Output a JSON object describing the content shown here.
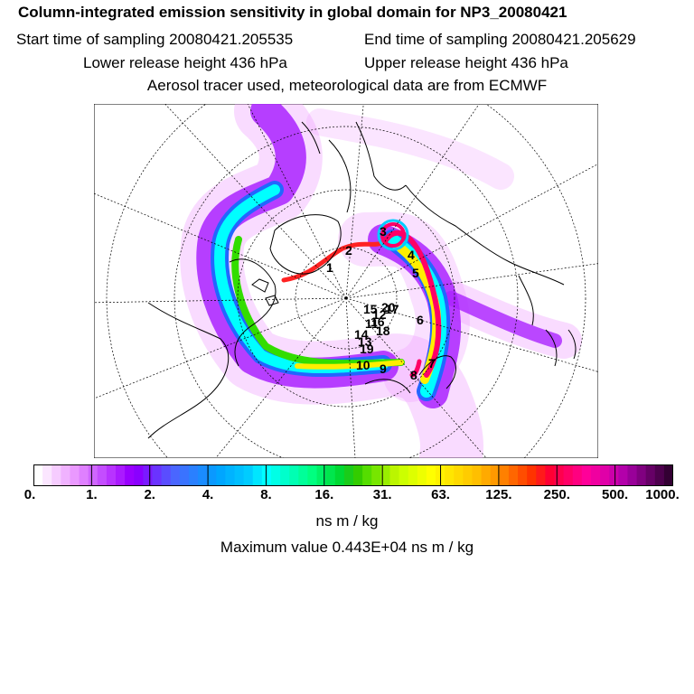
{
  "header": {
    "title": "Column-integrated emission sensitivity in global domain for NP3_20080421",
    "start_time": "Start time of sampling 20080421.205535",
    "end_time": "End time of sampling 20080421.205629",
    "lower_release": "Lower release height  436 hPa",
    "upper_release": "Upper release height  436 hPa",
    "tracer_info": "Aerosol tracer used, meteorological data are from ECMWF"
  },
  "map": {
    "projection": "polar stereographic",
    "trajectory_labels": [
      "1",
      "2",
      "3",
      "4",
      "5",
      "6",
      "7",
      "8",
      "9",
      "10",
      "11",
      "12",
      "13",
      "14",
      "15",
      "16",
      "17",
      "18",
      "19",
      "20"
    ]
  },
  "colorbar": {
    "tick_labels": [
      "0.",
      "1.",
      "2.",
      "4.",
      "8.",
      "16.",
      "31.",
      "63.",
      "125.",
      "250.",
      "500.",
      "1000."
    ],
    "colors": [
      "#ffffff",
      "#fbe6ff",
      "#f6ccff",
      "#f0b2ff",
      "#ea99ff",
      "#df80ff",
      "#d066ff",
      "#c44dff",
      "#b833ff",
      "#aa1aff",
      "#9900ff",
      "#8a00ff",
      "#7a1aff",
      "#6a33ff",
      "#5a4dff",
      "#4a66ff",
      "#3a73ff",
      "#2a80ff",
      "#1a8cff",
      "#0a99ff",
      "#00a6ff",
      "#00b3ff",
      "#00bfff",
      "#00ccff",
      "#00e6ff",
      "#00ffff",
      "#00ffe6",
      "#00ffcc",
      "#00ffb3",
      "#00ff99",
      "#00ff80",
      "#00f266",
      "#00e64d",
      "#00d933",
      "#1acc1a",
      "#33cc00",
      "#55dd00",
      "#77e600",
      "#99ee00",
      "#bbf500",
      "#ccff00",
      "#ddff00",
      "#eeff00",
      "#ffff00",
      "#fff200",
      "#ffe600",
      "#ffd900",
      "#ffcc00",
      "#ffbf00",
      "#ffaa00",
      "#ff9900",
      "#ff8000",
      "#ff6600",
      "#ff4d00",
      "#ff3300",
      "#ff1a1a",
      "#ff0033",
      "#ff004d",
      "#ff0066",
      "#ff0080",
      "#ff0099",
      "#f000a0",
      "#e000a8",
      "#cc00aa",
      "#b300aa",
      "#990099",
      "#800080",
      "#660066",
      "#4d004d",
      "#330033"
    ],
    "units": "ns m / kg"
  },
  "max_value": "Maximum value  0.443E+04 ns m / kg"
}
